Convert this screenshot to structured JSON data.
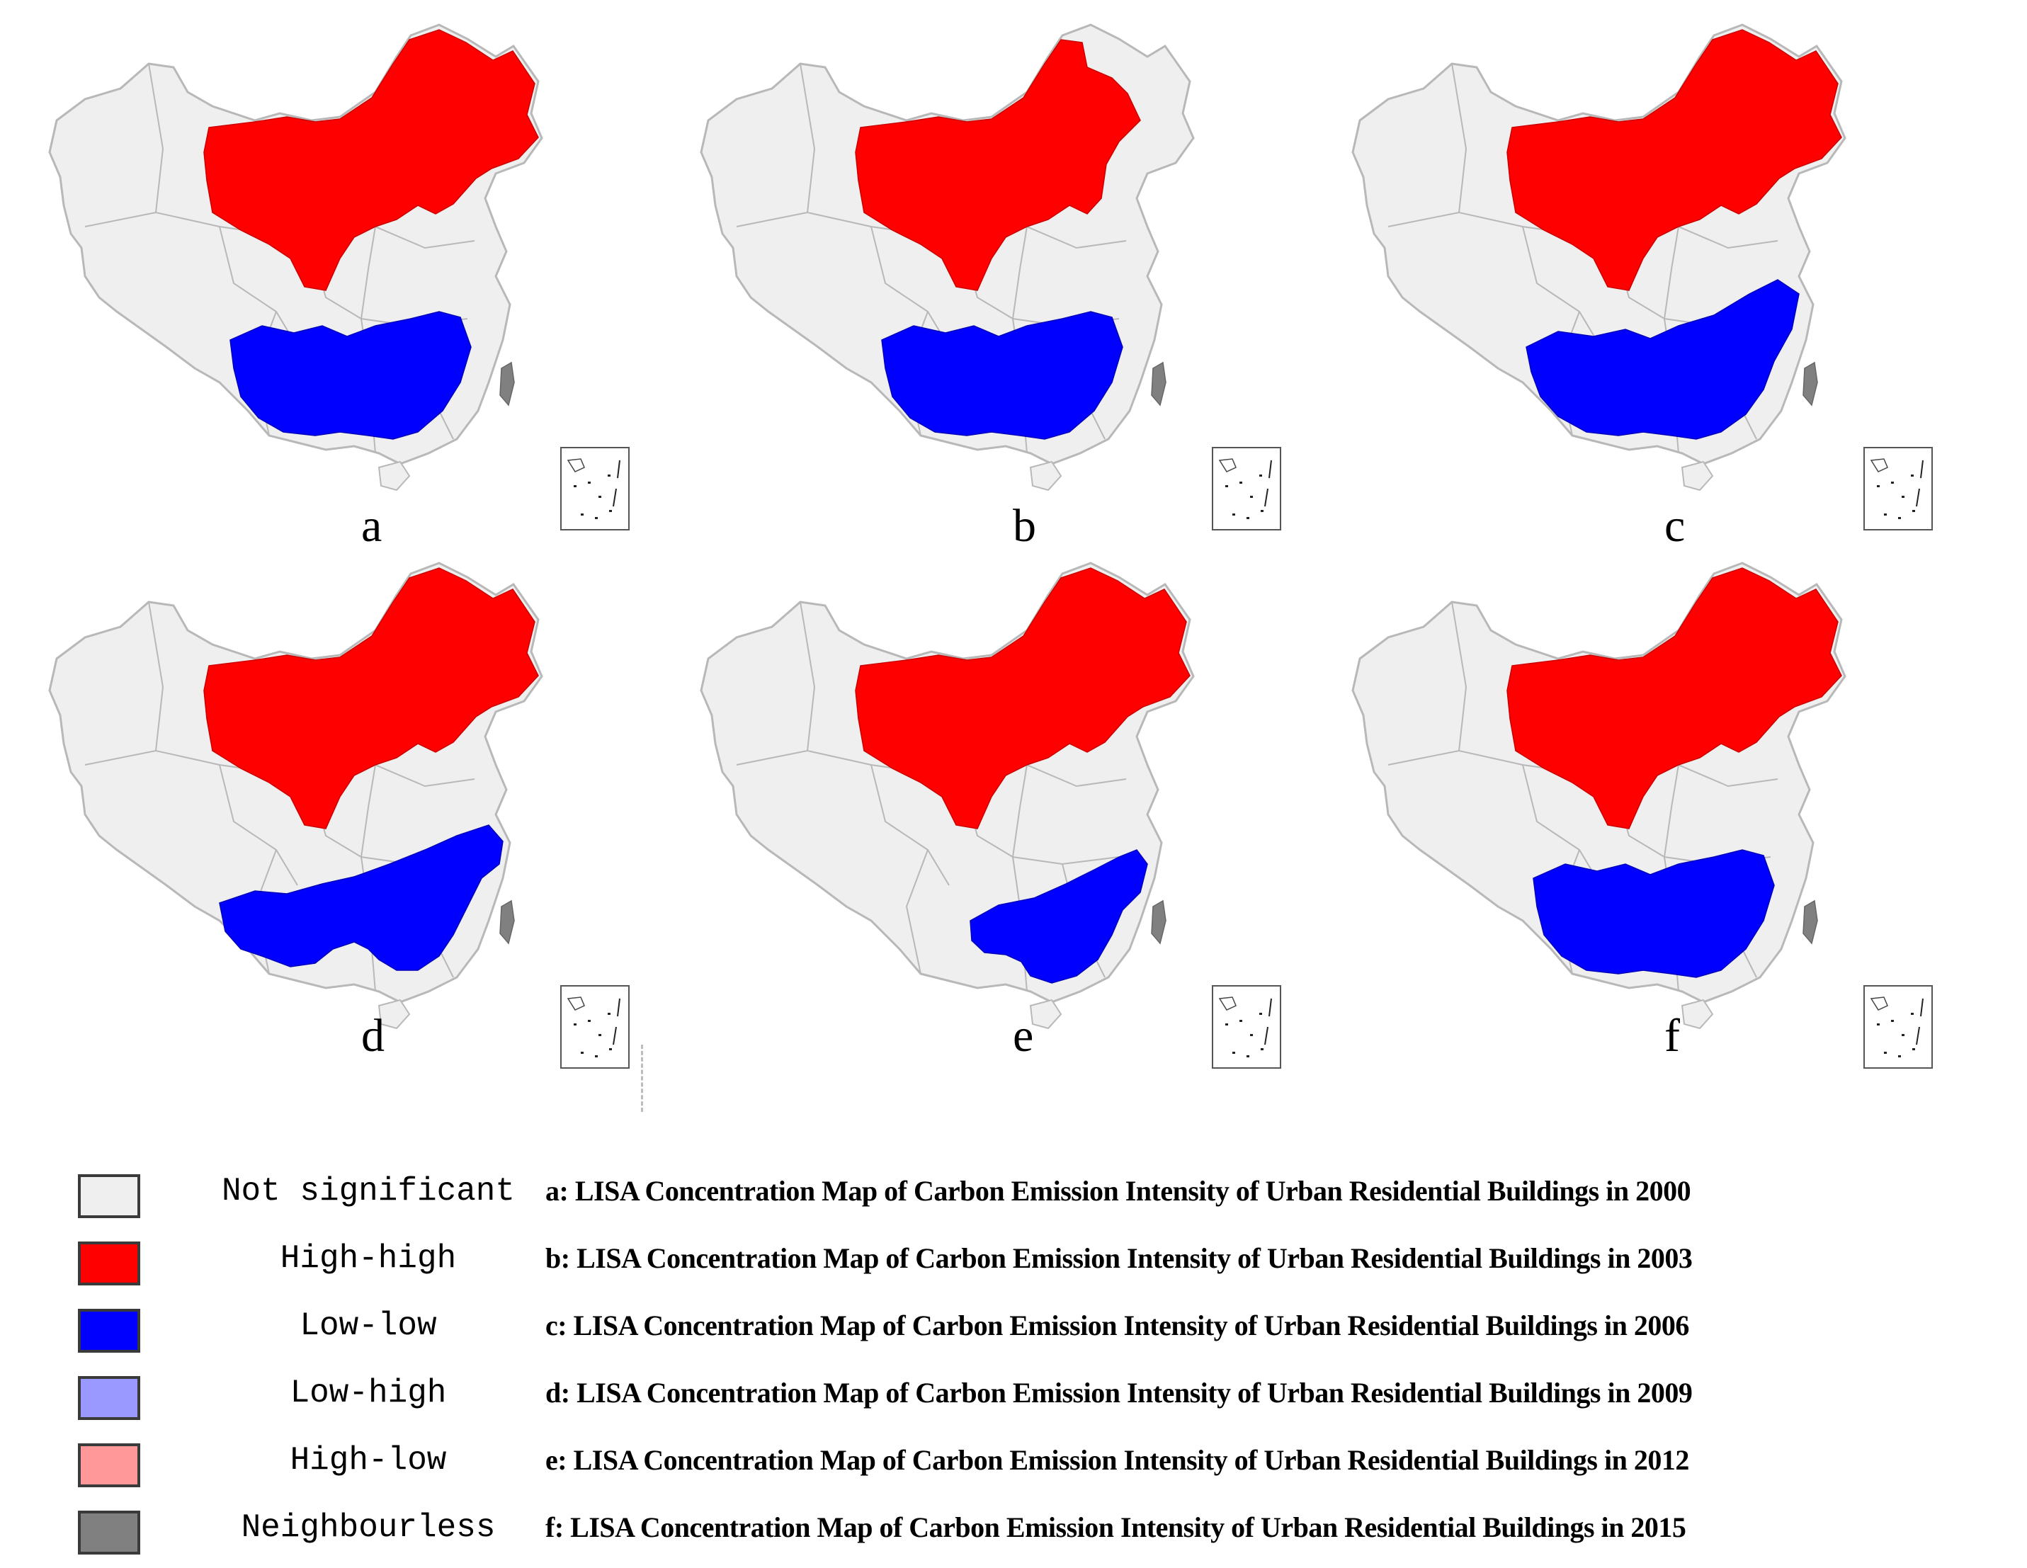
{
  "colors": {
    "not_significant": "#efefef",
    "high_high": "#ff0000",
    "low_low": "#0000ff",
    "low_high": "#9999ff",
    "high_low": "#ff9999",
    "neighbourless": "#808080",
    "border": "#b8b8b8"
  },
  "legend": [
    {
      "key": "not_significant",
      "label": "Not significant",
      "color": "#efefef"
    },
    {
      "key": "high_high",
      "label": "High-high",
      "color": "#ff0000"
    },
    {
      "key": "low_low",
      "label": "Low-low",
      "color": "#0000ff"
    },
    {
      "key": "low_high",
      "label": "Low-high",
      "color": "#9999ff"
    },
    {
      "key": "high_low",
      "label": "High-low",
      "color": "#ff9999"
    },
    {
      "key": "neighbourless",
      "label": "Neighbourless",
      "color": "#808080"
    }
  ],
  "captions": [
    "a: LISA Concentration Map of Carbon Emission Intensity of Urban Residential Buildings in 2000",
    "b: LISA Concentration Map of Carbon Emission Intensity of Urban Residential Buildings in 2003",
    "c: LISA Concentration Map of Carbon Emission Intensity of Urban Residential Buildings in 2006",
    "d: LISA Concentration Map of Carbon Emission Intensity of Urban Residential Buildings in 2009",
    "e: LISA Concentration Map of Carbon Emission Intensity of Urban Residential Buildings in 2012",
    "f: LISA Concentration Map of Carbon Emission Intensity of Urban Residential Buildings in 2015"
  ],
  "panels": [
    {
      "label": "a",
      "year": 2000,
      "high_high_extent": "north-west-to-north-east band",
      "low_low_extent": "wide south"
    },
    {
      "label": "b",
      "year": 2003,
      "high_high_extent": "north band minus far north-east tip",
      "low_low_extent": "south"
    },
    {
      "label": "c",
      "year": 2006,
      "high_high_extent": "north band",
      "low_low_extent": "south extended east"
    },
    {
      "label": "d",
      "year": 2009,
      "high_high_extent": "north band",
      "low_low_extent": "south band to east coast"
    },
    {
      "label": "e",
      "year": 2012,
      "high_high_extent": "north band",
      "low_low_extent": "south-east only"
    },
    {
      "label": "f",
      "year": 2015,
      "high_high_extent": "north band",
      "low_low_extent": "south"
    }
  ]
}
